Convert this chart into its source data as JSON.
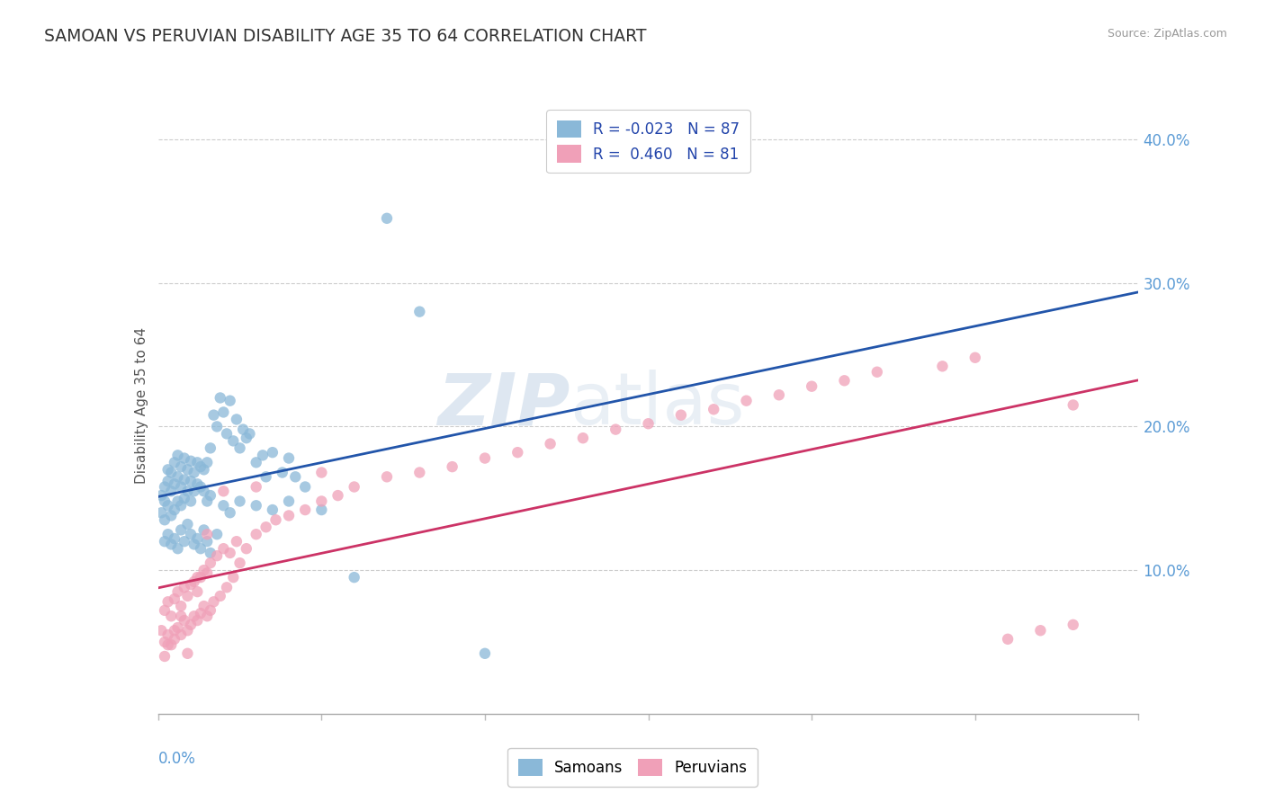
{
  "title": "SAMOAN VS PERUVIAN DISABILITY AGE 35 TO 64 CORRELATION CHART",
  "source": "Source: ZipAtlas.com",
  "ylabel": "Disability Age 35 to 64",
  "right_yticks": [
    "10.0%",
    "20.0%",
    "30.0%",
    "40.0%"
  ],
  "right_ytick_vals": [
    0.1,
    0.2,
    0.3,
    0.4
  ],
  "xlim": [
    0.0,
    0.3
  ],
  "ylim": [
    0.0,
    0.43
  ],
  "samoans_R": -0.023,
  "samoans_N": 87,
  "peruvians_R": 0.46,
  "peruvians_N": 81,
  "samoan_color": "#8ab8d8",
  "peruvian_color": "#f0a0b8",
  "samoan_line_color": "#2255aa",
  "peruvian_line_color": "#cc3366",
  "background_color": "#ffffff",
  "watermark_zip": "ZIP",
  "watermark_atlas": "atlas",
  "legend_label_samoans": "Samoans",
  "legend_label_peruvians": "Peruvians",
  "samoans_x": [
    0.001,
    0.001,
    0.002,
    0.002,
    0.002,
    0.003,
    0.003,
    0.003,
    0.004,
    0.004,
    0.004,
    0.005,
    0.005,
    0.005,
    0.006,
    0.006,
    0.006,
    0.007,
    0.007,
    0.007,
    0.008,
    0.008,
    0.008,
    0.009,
    0.009,
    0.01,
    0.01,
    0.01,
    0.011,
    0.011,
    0.012,
    0.012,
    0.013,
    0.013,
    0.014,
    0.014,
    0.015,
    0.015,
    0.016,
    0.016,
    0.017,
    0.018,
    0.019,
    0.02,
    0.021,
    0.022,
    0.023,
    0.024,
    0.025,
    0.026,
    0.027,
    0.028,
    0.03,
    0.032,
    0.033,
    0.035,
    0.038,
    0.04,
    0.042,
    0.045,
    0.002,
    0.003,
    0.004,
    0.005,
    0.006,
    0.007,
    0.008,
    0.009,
    0.01,
    0.011,
    0.012,
    0.013,
    0.014,
    0.015,
    0.016,
    0.018,
    0.02,
    0.022,
    0.025,
    0.03,
    0.035,
    0.04,
    0.05,
    0.06,
    0.07,
    0.08,
    0.1
  ],
  "samoans_y": [
    0.152,
    0.14,
    0.148,
    0.158,
    0.135,
    0.162,
    0.145,
    0.17,
    0.138,
    0.155,
    0.168,
    0.142,
    0.16,
    0.175,
    0.148,
    0.165,
    0.18,
    0.145,
    0.158,
    0.172,
    0.15,
    0.163,
    0.178,
    0.155,
    0.17,
    0.148,
    0.162,
    0.176,
    0.155,
    0.168,
    0.16,
    0.175,
    0.158,
    0.172,
    0.155,
    0.17,
    0.148,
    0.175,
    0.152,
    0.185,
    0.208,
    0.2,
    0.22,
    0.21,
    0.195,
    0.218,
    0.19,
    0.205,
    0.185,
    0.198,
    0.192,
    0.195,
    0.175,
    0.18,
    0.165,
    0.182,
    0.168,
    0.178,
    0.165,
    0.158,
    0.12,
    0.125,
    0.118,
    0.122,
    0.115,
    0.128,
    0.12,
    0.132,
    0.125,
    0.118,
    0.122,
    0.115,
    0.128,
    0.12,
    0.112,
    0.125,
    0.145,
    0.14,
    0.148,
    0.145,
    0.142,
    0.148,
    0.142,
    0.095,
    0.345,
    0.28,
    0.042
  ],
  "peruvians_x": [
    0.001,
    0.002,
    0.002,
    0.003,
    0.003,
    0.004,
    0.004,
    0.005,
    0.005,
    0.006,
    0.006,
    0.007,
    0.007,
    0.008,
    0.008,
    0.009,
    0.009,
    0.01,
    0.01,
    0.011,
    0.011,
    0.012,
    0.012,
    0.013,
    0.013,
    0.014,
    0.014,
    0.015,
    0.015,
    0.016,
    0.016,
    0.017,
    0.018,
    0.019,
    0.02,
    0.021,
    0.022,
    0.023,
    0.024,
    0.025,
    0.027,
    0.03,
    0.033,
    0.036,
    0.04,
    0.045,
    0.05,
    0.055,
    0.06,
    0.07,
    0.08,
    0.09,
    0.1,
    0.11,
    0.12,
    0.13,
    0.14,
    0.15,
    0.16,
    0.17,
    0.18,
    0.19,
    0.2,
    0.21,
    0.22,
    0.24,
    0.25,
    0.26,
    0.27,
    0.28,
    0.002,
    0.003,
    0.005,
    0.007,
    0.009,
    0.012,
    0.015,
    0.02,
    0.03,
    0.05,
    0.28
  ],
  "peruvians_y": [
    0.058,
    0.05,
    0.072,
    0.055,
    0.078,
    0.048,
    0.068,
    0.052,
    0.08,
    0.06,
    0.085,
    0.055,
    0.075,
    0.065,
    0.088,
    0.058,
    0.082,
    0.062,
    0.09,
    0.068,
    0.092,
    0.065,
    0.085,
    0.07,
    0.095,
    0.075,
    0.1,
    0.068,
    0.098,
    0.072,
    0.105,
    0.078,
    0.11,
    0.082,
    0.115,
    0.088,
    0.112,
    0.095,
    0.12,
    0.105,
    0.115,
    0.125,
    0.13,
    0.135,
    0.138,
    0.142,
    0.148,
    0.152,
    0.158,
    0.165,
    0.168,
    0.172,
    0.178,
    0.182,
    0.188,
    0.192,
    0.198,
    0.202,
    0.208,
    0.212,
    0.218,
    0.222,
    0.228,
    0.232,
    0.238,
    0.242,
    0.248,
    0.052,
    0.058,
    0.062,
    0.04,
    0.048,
    0.058,
    0.068,
    0.042,
    0.095,
    0.125,
    0.155,
    0.158,
    0.168,
    0.215
  ]
}
